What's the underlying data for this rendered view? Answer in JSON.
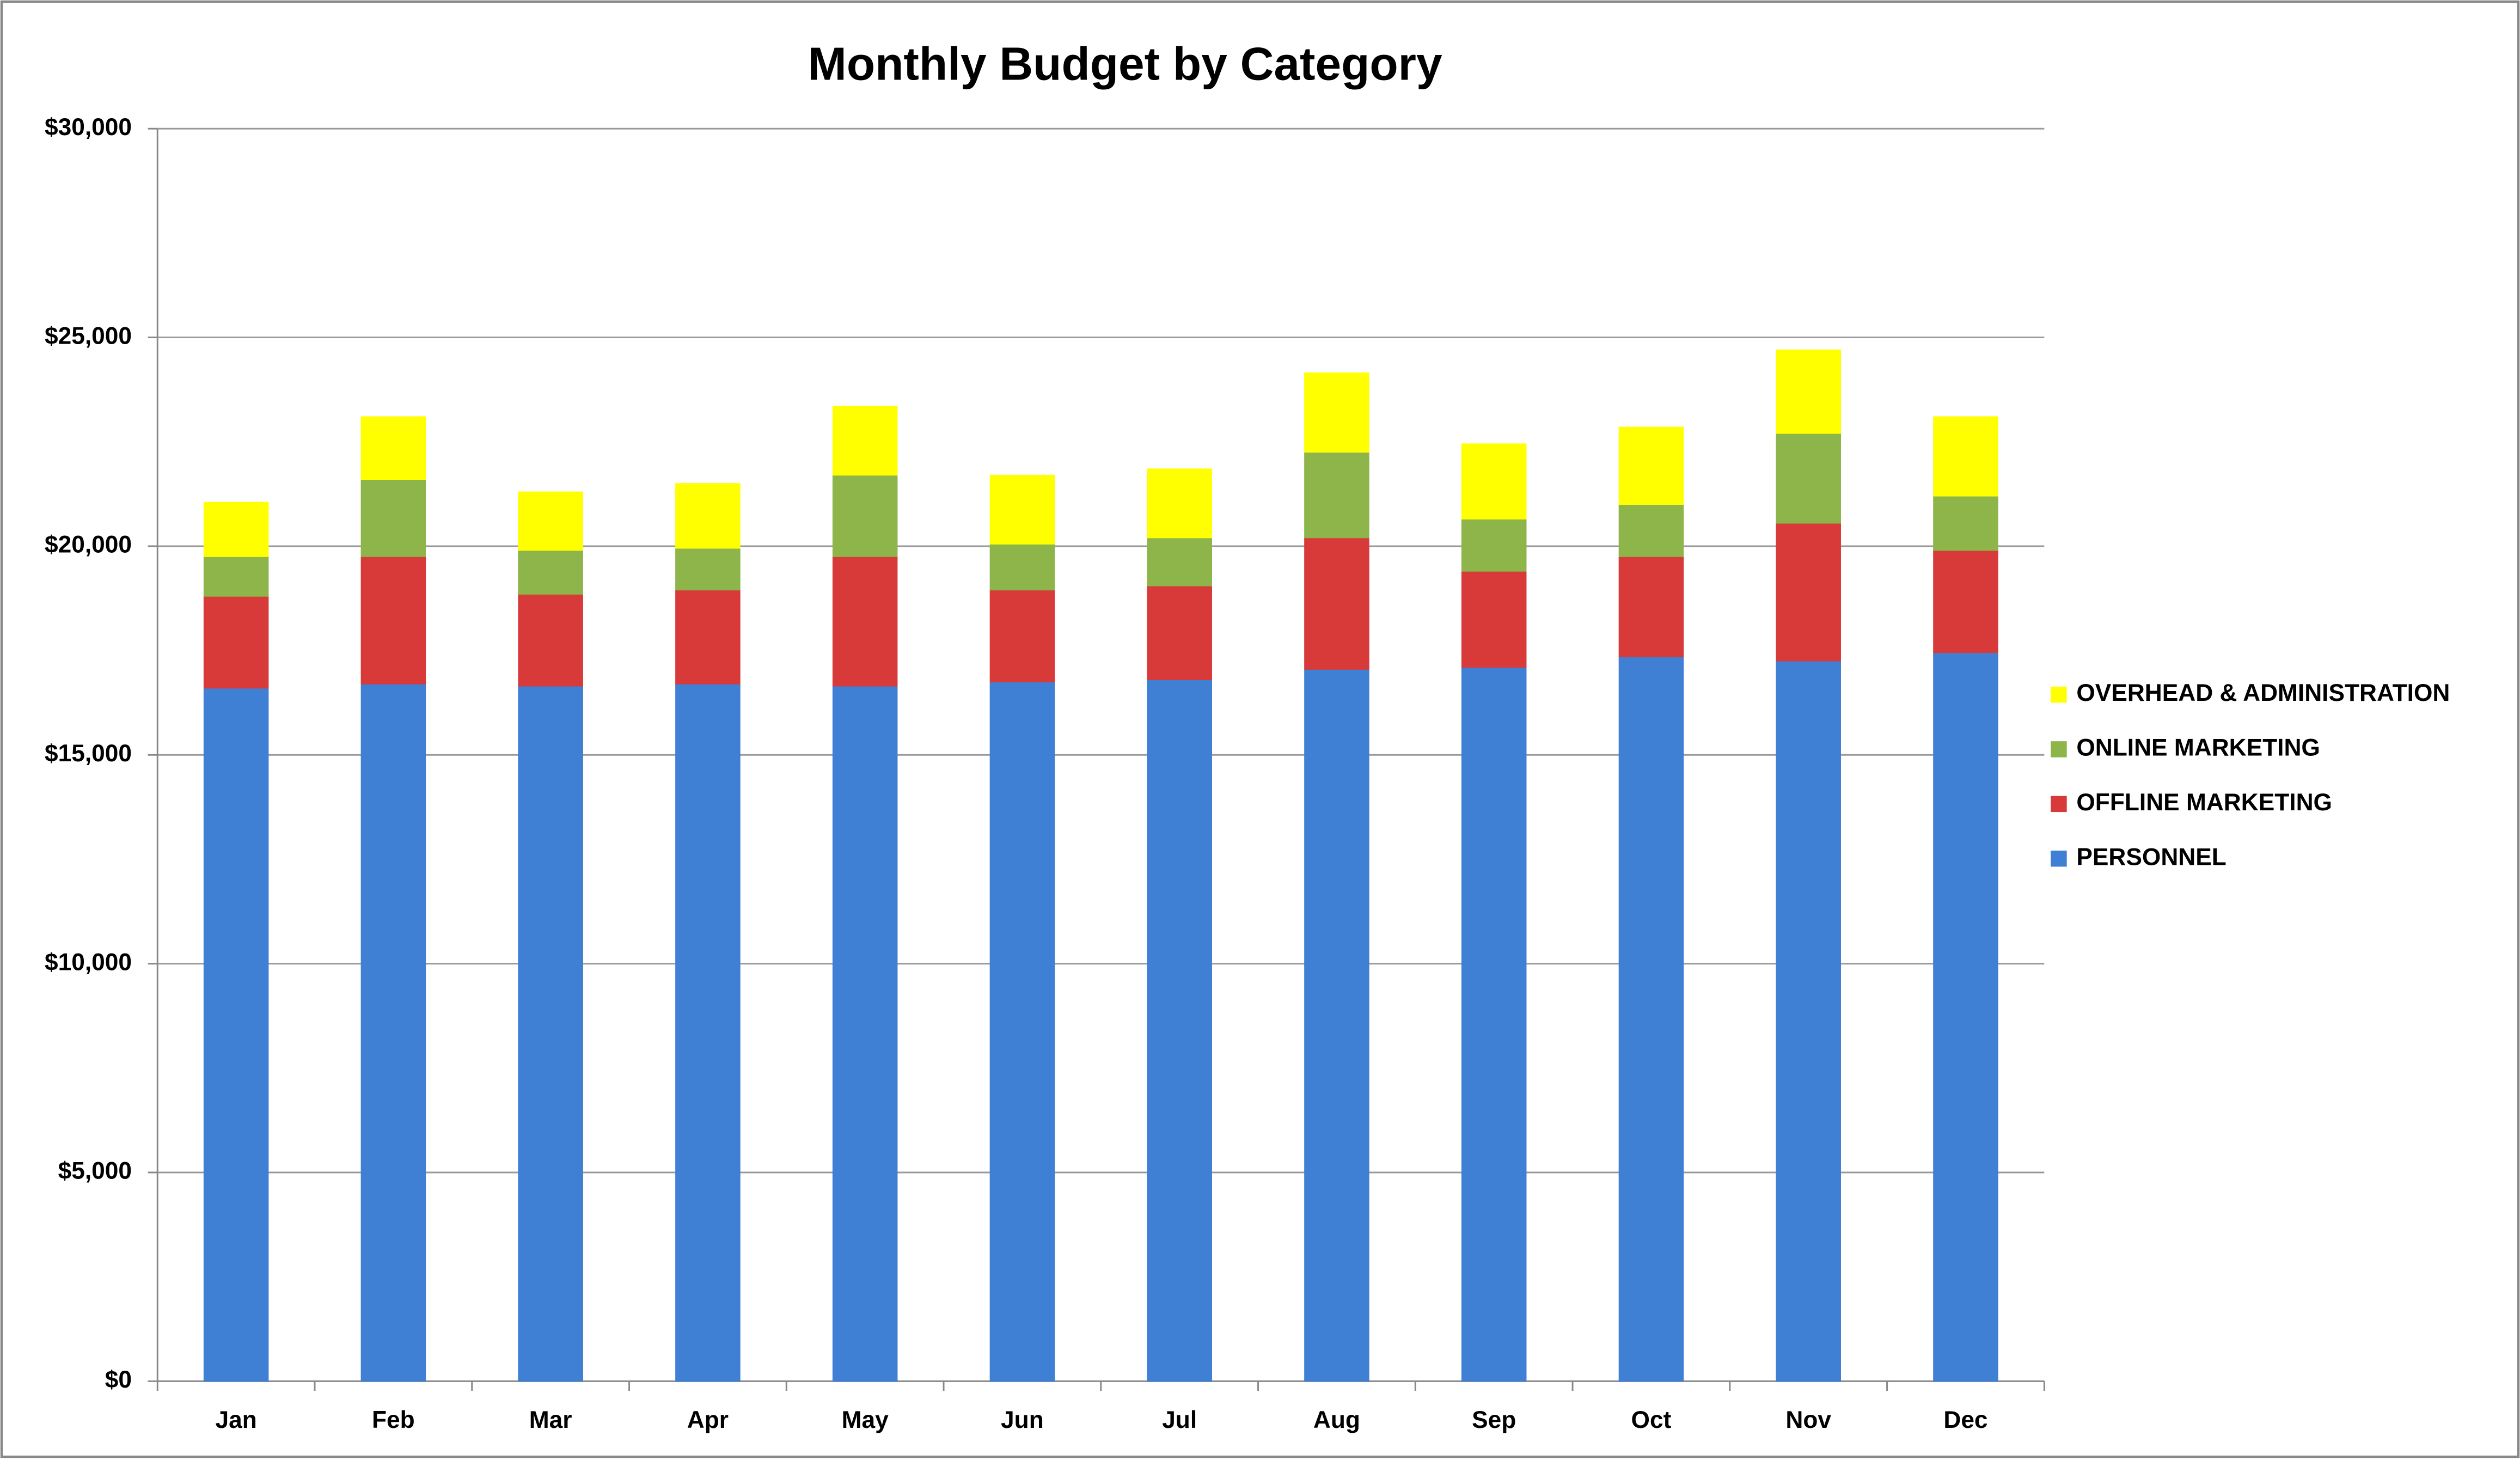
{
  "chart_data": {
    "type": "stacked_bar",
    "title": "Monthly Budget by Category",
    "categories": [
      "Jan",
      "Feb",
      "Mar",
      "Apr",
      "May",
      "Jun",
      "Jul",
      "Aug",
      "Sep",
      "Oct",
      "Nov",
      "Dec"
    ],
    "series": [
      {
        "name": "PERSONNEL",
        "color": "#3f7fd4",
        "values": [
          16600,
          16700,
          16650,
          16700,
          16650,
          16750,
          16800,
          17050,
          17100,
          17350,
          17250,
          17450
        ]
      },
      {
        "name": "OFFLINE MARKETING",
        "color": "#d83a3a",
        "values": [
          2200,
          3050,
          2200,
          2250,
          3100,
          2200,
          2250,
          3150,
          2300,
          2400,
          3300,
          2450
        ]
      },
      {
        "name": "ONLINE MARKETING",
        "color": "#8db54a",
        "values": [
          950,
          1850,
          1050,
          1000,
          1950,
          1100,
          1150,
          2050,
          1250,
          1250,
          2150,
          1300
        ]
      },
      {
        "name": "OVERHEAD & ADMINISTRATION",
        "color": "#ffff00",
        "values": [
          1300,
          1500,
          1400,
          1550,
          1650,
          1650,
          1650,
          1900,
          1800,
          1850,
          2000,
          1900
        ]
      }
    ],
    "ylim": [
      0,
      30000
    ],
    "yticks": [
      {
        "value": 0,
        "label": "$0"
      },
      {
        "value": 5000,
        "label": "$5,000"
      },
      {
        "value": 10000,
        "label": "$10,000"
      },
      {
        "value": 15000,
        "label": "$15,000"
      },
      {
        "value": 20000,
        "label": "$20,000"
      },
      {
        "value": 25000,
        "label": "$25,000"
      },
      {
        "value": 30000,
        "label": "$30,000"
      }
    ],
    "grid": true,
    "legend": "right"
  }
}
